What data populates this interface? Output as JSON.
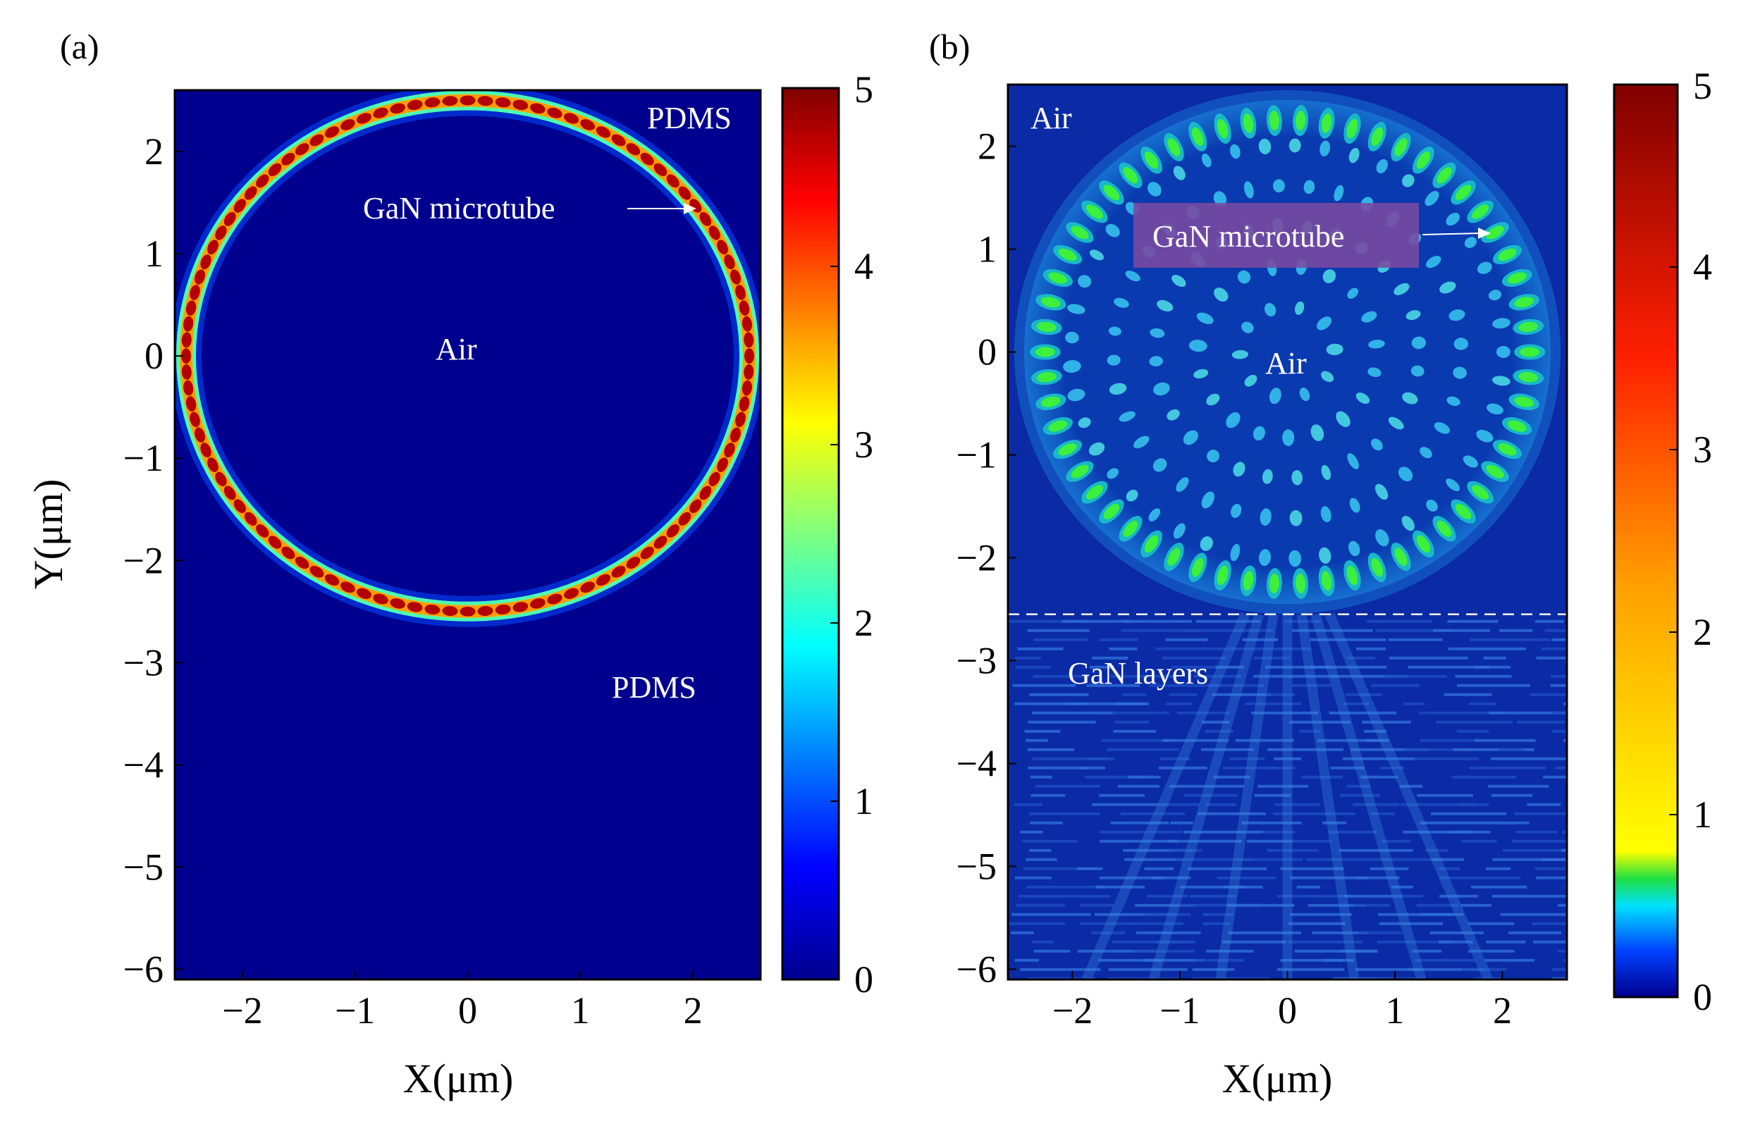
{
  "figure": {
    "panel_a_label": "(a)",
    "panel_b_label": "(b)"
  },
  "chart_data": [
    {
      "type": "heatmap",
      "panel": "(a)",
      "title": "",
      "xlabel": "X(μm)",
      "ylabel": "Y(μm)",
      "xlim": [
        -2.6,
        2.6
      ],
      "ylim": [
        -6.1,
        2.6
      ],
      "xticks": [
        -2,
        -1,
        0,
        1,
        2
      ],
      "xtick_labels": [
        "−2",
        "−1",
        "0",
        "1",
        "2"
      ],
      "yticks": [
        2,
        1,
        0,
        -1,
        -2,
        -3,
        -4,
        -5,
        -6
      ],
      "ytick_labels": [
        "2",
        "1",
        "0",
        "−1",
        "−2",
        "−3",
        "−4",
        "−5",
        "−6"
      ],
      "colorbar": {
        "range": [
          0,
          5
        ],
        "ticks": [
          0,
          1,
          2,
          3,
          4,
          5
        ],
        "tick_labels": [
          "0",
          "1",
          "2",
          "3",
          "4",
          "5"
        ],
        "colormap": "jet"
      },
      "field": {
        "ring_center": [
          0,
          0
        ],
        "ring_radius_um": 2.5,
        "ring_peak_value": 5,
        "interior_value": 0,
        "background_value": 0,
        "lobes_around_ring": 100
      },
      "annotations": [
        {
          "text": "PDMS",
          "x": 2.0,
          "y": 2.3
        },
        {
          "text": "GaN microtube",
          "x": 0.15,
          "y": 1.4,
          "arrow_to": [
            2.0,
            1.4
          ]
        },
        {
          "text": "Air",
          "x": -0.1,
          "y": 0.0
        },
        {
          "text": "PDMS",
          "x": 1.7,
          "y": -3.25
        }
      ],
      "colors": {
        "background": "#00008f",
        "ring": "#b00000"
      }
    },
    {
      "type": "heatmap",
      "panel": "(b)",
      "title": "",
      "xlabel": "X(μm)",
      "ylabel": "",
      "xlim": [
        -2.6,
        2.6
      ],
      "ylim": [
        -6.1,
        2.6
      ],
      "xticks": [
        -2,
        -1,
        0,
        1,
        2
      ],
      "xtick_labels": [
        "−2",
        "−1",
        "0",
        "1",
        "2"
      ],
      "yticks": [
        2,
        1,
        0,
        -1,
        -2,
        -3,
        -4,
        -5,
        -6
      ],
      "ytick_labels": [
        "2",
        "1",
        "0",
        "−1",
        "−2",
        "−3",
        "−4",
        "−5",
        "−6"
      ],
      "colorbar": {
        "range": [
          0,
          5
        ],
        "ticks": [
          0,
          1,
          2,
          3,
          4,
          5
        ],
        "tick_labels": [
          "0",
          "1",
          "2",
          "3",
          "4",
          "5"
        ],
        "colormap": "jet"
      },
      "field": {
        "ring_center": [
          0,
          0
        ],
        "ring_radius_um": 2.45,
        "ring_peak_value": 0.6,
        "interior_value": 0.25,
        "background_value": 0.1,
        "lobes_around_ring": 58,
        "interface_y_um": -2.55
      },
      "annotations": [
        {
          "text": "Air",
          "x": -2.3,
          "y": 2.3
        },
        {
          "text": "GaN microtube",
          "x": -0.2,
          "y": 1.1,
          "arrow_to": [
            1.95,
            1.1
          ]
        },
        {
          "text": "Air",
          "x": 0.0,
          "y": -0.15
        },
        {
          "text": "GaN layers",
          "x": -1.2,
          "y": -3.1
        }
      ],
      "colors": {
        "background": "#0a2aa6",
        "ring": "#28e84a",
        "annotation_box": "#7a4aa0",
        "dash": "#ffffff"
      }
    }
  ]
}
